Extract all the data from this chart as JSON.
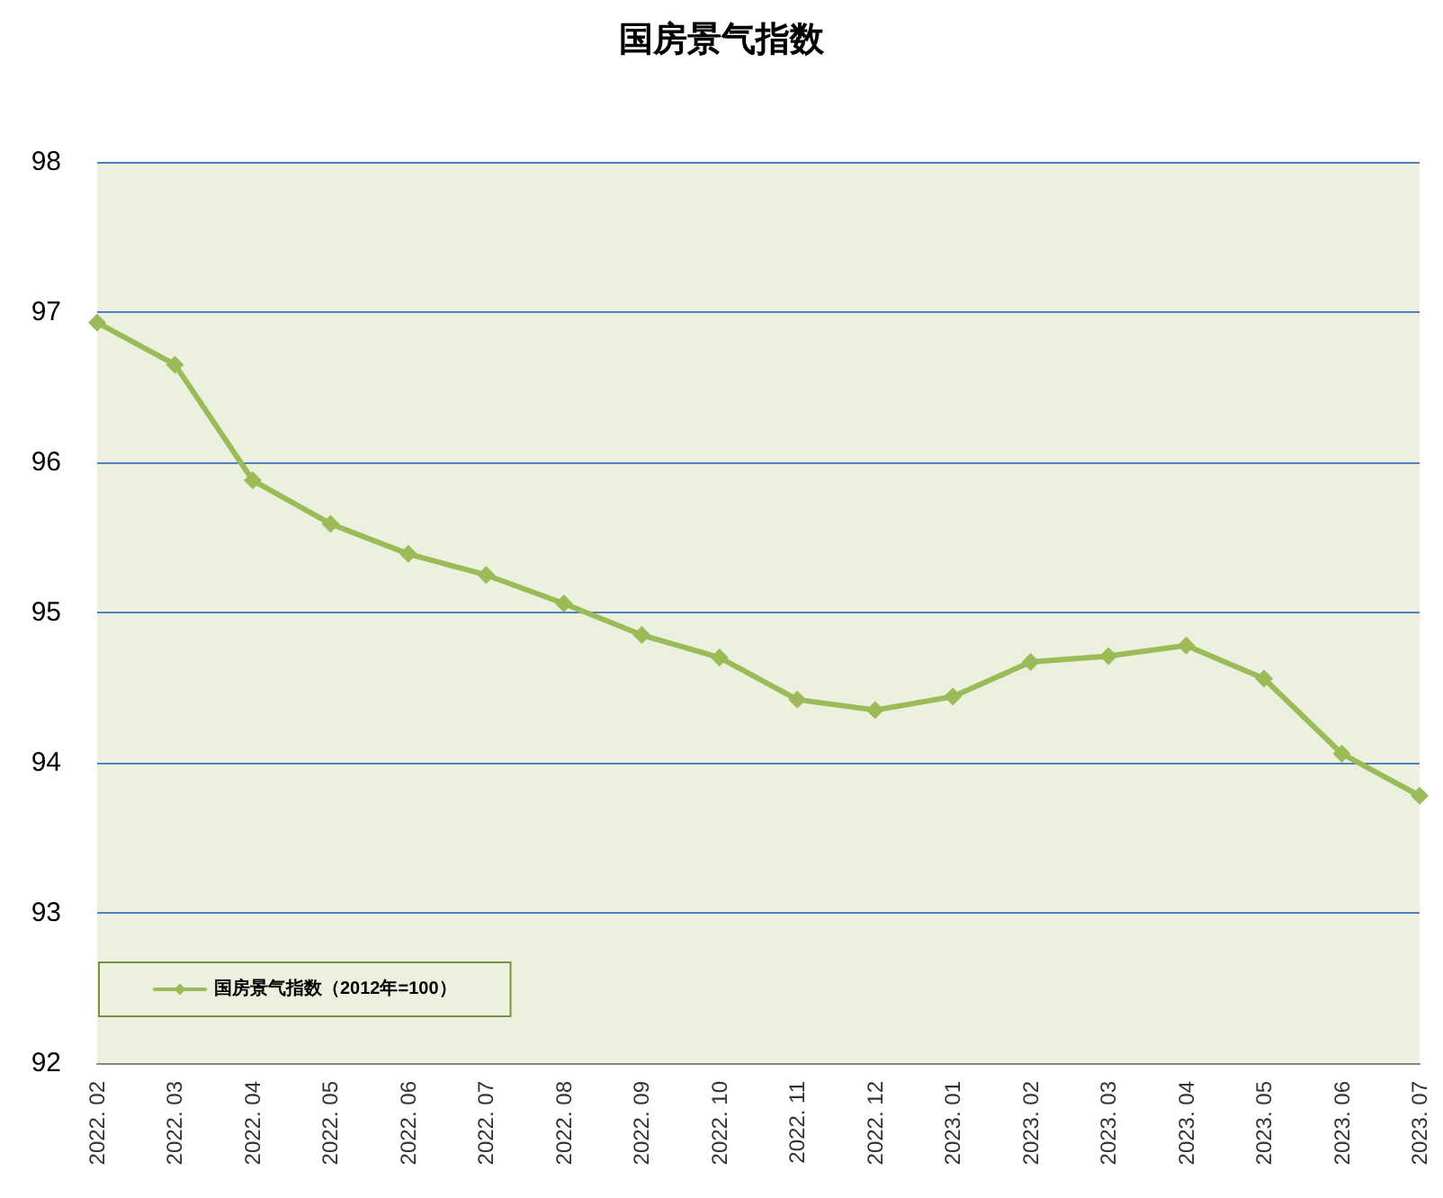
{
  "chart_data": {
    "type": "line",
    "title": "国房景气指数",
    "categories": [
      "2022. 02",
      "2022. 03",
      "2022. 04",
      "2022. 05",
      "2022. 06",
      "2022. 07",
      "2022. 08",
      "2022. 09",
      "2022. 10",
      "2022. 11",
      "2022. 12",
      "2023. 01",
      "2023. 02",
      "2023. 03",
      "2023. 04",
      "2023. 05",
      "2023. 06",
      "2023. 07"
    ],
    "series": [
      {
        "name": "国房景气指数（2012年=100）",
        "color": "#9bbb59",
        "values": [
          96.93,
          96.65,
          95.88,
          95.59,
          95.39,
          95.25,
          95.06,
          94.85,
          94.7,
          94.42,
          94.35,
          94.44,
          94.67,
          94.71,
          94.78,
          94.56,
          94.06,
          93.78
        ]
      }
    ],
    "ylim": [
      92,
      98
    ],
    "yticks": [
      92,
      93,
      94,
      95,
      96,
      97,
      98
    ],
    "grid": "y",
    "legend": "bottom left",
    "marker": "diamond",
    "line_style": "solid"
  }
}
